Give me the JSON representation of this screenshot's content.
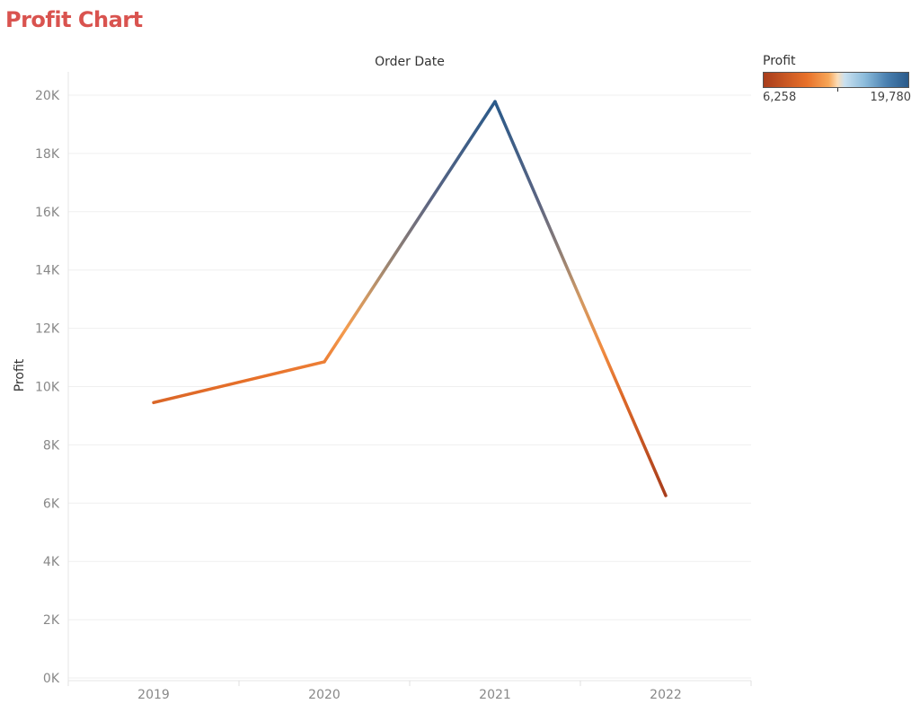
{
  "page": {
    "title": "Profit Chart"
  },
  "legend": {
    "title": "Profit",
    "min_label": "6,258",
    "max_label": "19,780",
    "min": 6258,
    "max": 19780
  },
  "chart_data": {
    "type": "line",
    "title": "Profit Chart",
    "xlabel": "Order Date",
    "ylabel": "Profit",
    "categories": [
      "2019",
      "2020",
      "2021",
      "2022"
    ],
    "series": [
      {
        "name": "Profit",
        "values": [
          9450,
          10850,
          19780,
          6258
        ]
      }
    ],
    "ylim": [
      0,
      20000
    ],
    "yticks": [
      0,
      2000,
      4000,
      6000,
      8000,
      10000,
      12000,
      14000,
      16000,
      18000,
      20000
    ],
    "ytick_labels": [
      "0K",
      "2K",
      "4K",
      "6K",
      "8K",
      "10K",
      "12K",
      "14K",
      "16K",
      "18K",
      "20K"
    ],
    "grid": true,
    "color_by": "Profit",
    "colors": {
      "low": "#a83d1c",
      "mid_low": "#e8712a",
      "mid": "#f7a658",
      "high": "#2a5a8a",
      "title": "#d9534f"
    }
  }
}
